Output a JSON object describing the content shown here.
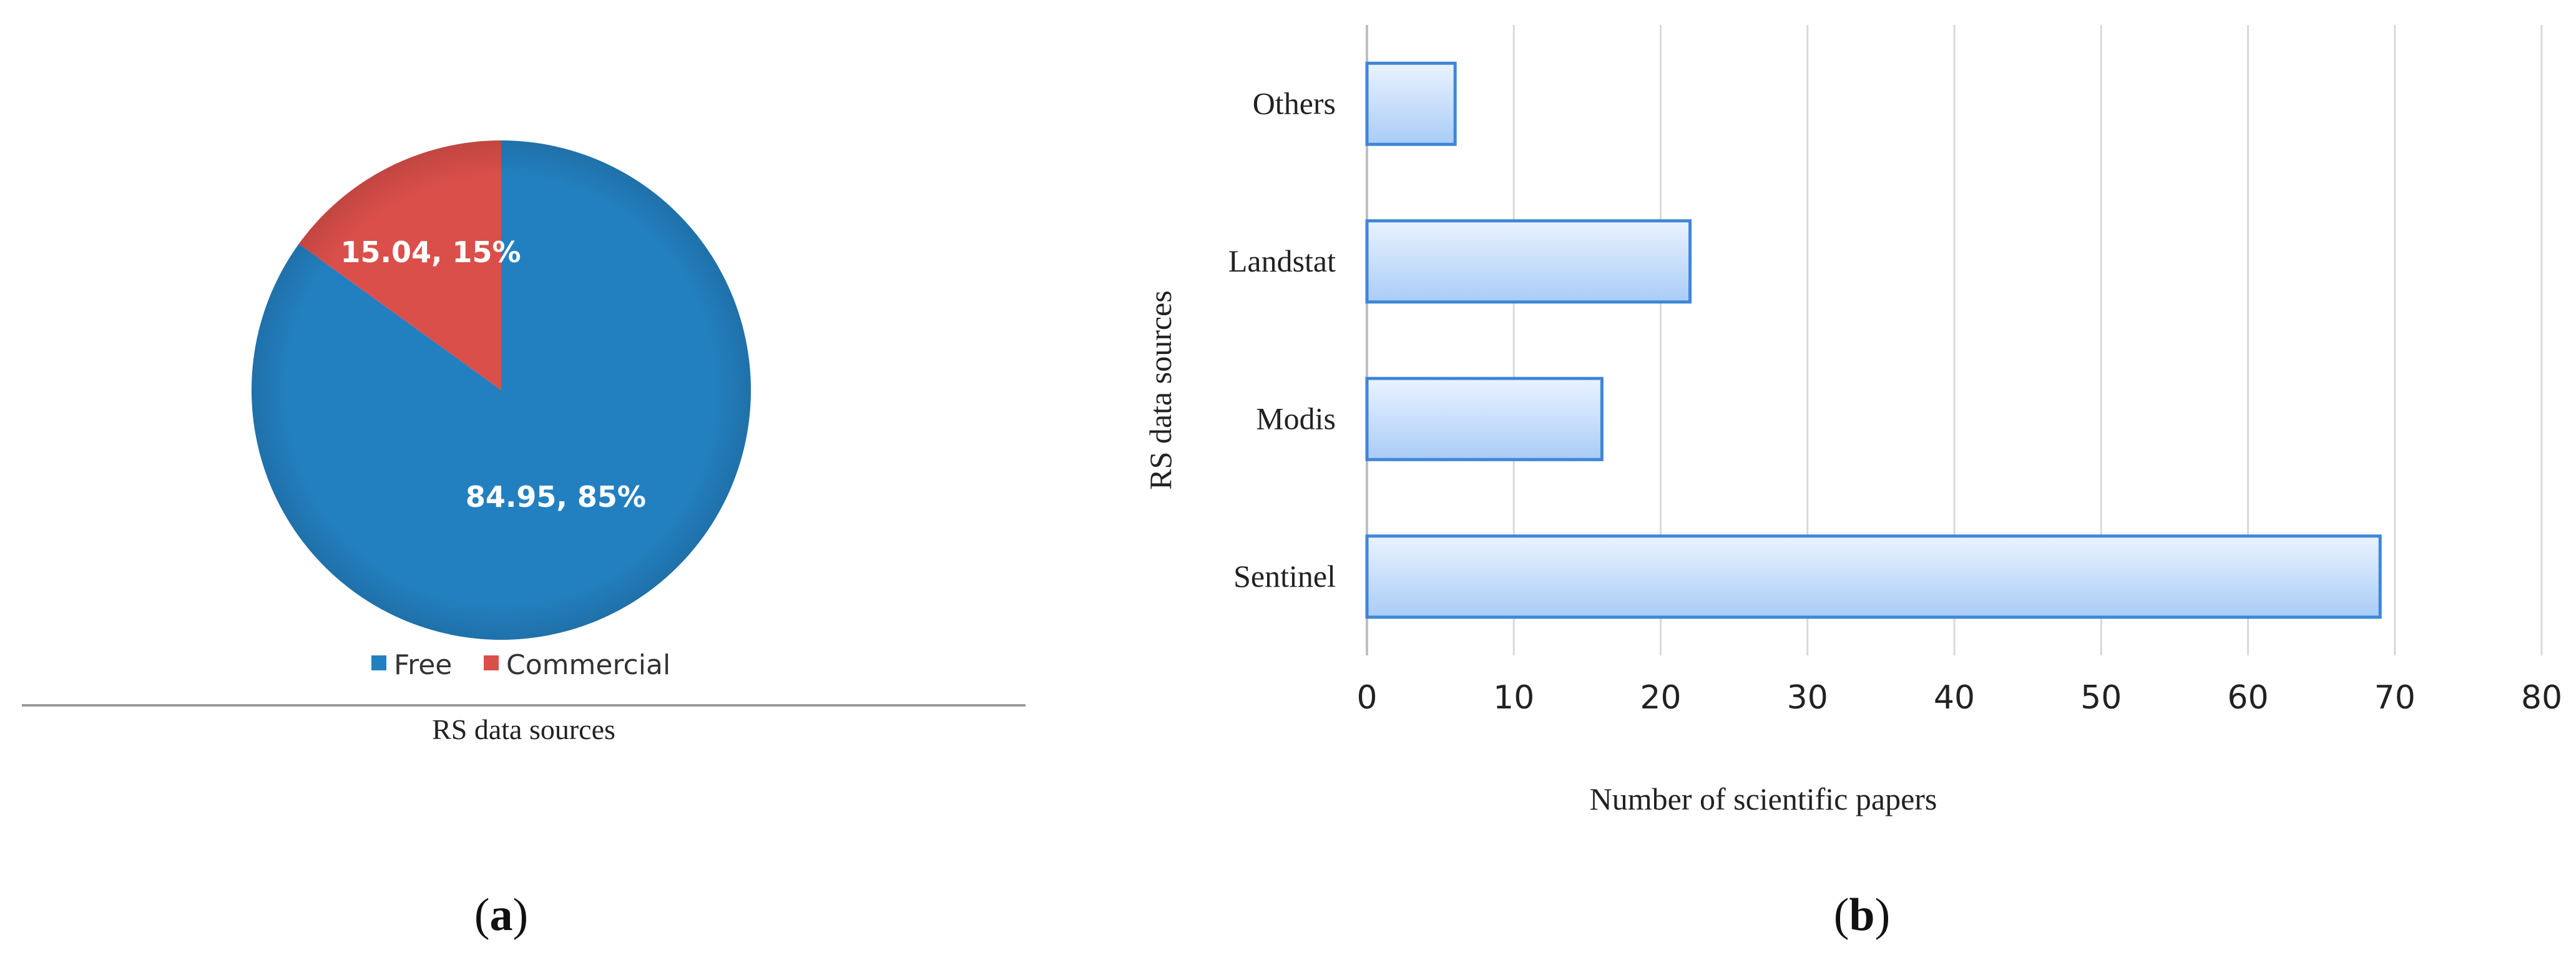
{
  "panels": {
    "a": {
      "label_letter": "a",
      "caption_bottom": "RS data sources"
    },
    "b": {
      "label_letter": "b"
    }
  },
  "colors": {
    "pie_free": "#2380C0",
    "pie_commercial": "#DB4F4A",
    "bar_fill_top": "#EAF3FF",
    "bar_fill_bottom": "#A9CCF6",
    "bar_stroke": "#3F86D8",
    "grid": "#D9D9D9",
    "axis": "#BFBFBF",
    "text": "#222222"
  },
  "chart_data": [
    {
      "type": "pie",
      "slices": [
        {
          "name": "Free",
          "value": 84.95,
          "label": "84.95, 85%"
        },
        {
          "name": "Commercial",
          "value": 15.04,
          "label": "15.04, 15%"
        }
      ],
      "legend": [
        "Free",
        "Commercial"
      ],
      "legend_position": "bottom",
      "xlabel": "RS data sources"
    },
    {
      "type": "bar",
      "orientation": "horizontal",
      "categories": [
        "Sentinel",
        "Modis",
        "Landstat",
        "Others"
      ],
      "values": [
        69,
        16,
        22,
        6
      ],
      "xlabel": "Number of scientific papers",
      "ylabel": "RS data sources",
      "xlim": [
        0,
        80
      ],
      "xticks": [
        0,
        10,
        20,
        30,
        40,
        50,
        60,
        70,
        80
      ],
      "grid": "vertical"
    }
  ]
}
